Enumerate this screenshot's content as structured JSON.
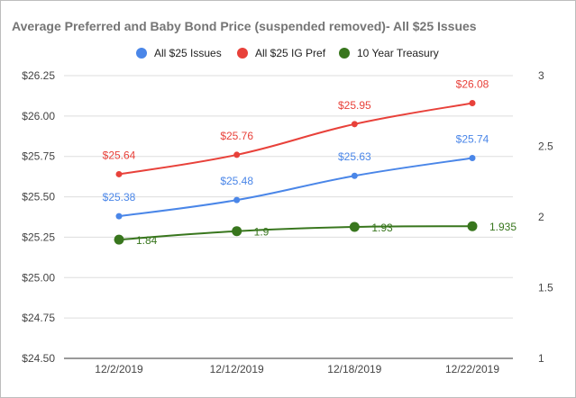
{
  "chart_data": {
    "type": "line",
    "title": "Average Preferred and Baby Bond Price (suspended removed)- All $25 Issues",
    "categories": [
      "12/2/2019",
      "12/12/2019",
      "12/18/2019",
      "12/22/2019"
    ],
    "series": [
      {
        "name": "All $25 Issues",
        "axis": "left",
        "color": "#4a86e8",
        "values": [
          25.38,
          25.48,
          25.63,
          25.74
        ],
        "labels": [
          "$25.38",
          "$25.48",
          "$25.63",
          "$25.74"
        ]
      },
      {
        "name": "All $25 IG Pref",
        "axis": "left",
        "color": "#e8413a",
        "values": [
          25.64,
          25.76,
          25.95,
          26.08
        ],
        "labels": [
          "$25.64",
          "$25.76",
          "$25.95",
          "$26.08"
        ]
      },
      {
        "name": "10 Year Treasury",
        "axis": "right",
        "color": "#38761d",
        "values": [
          1.84,
          1.9,
          1.93,
          1.935
        ],
        "labels": [
          "1.84",
          "1.9",
          "1.93",
          "1.935"
        ]
      }
    ],
    "left_axis": {
      "ylim": [
        24.5,
        26.25
      ],
      "ticks": [
        24.5,
        24.75,
        25.0,
        25.25,
        25.5,
        25.75,
        26.0,
        26.25
      ],
      "tick_labels": [
        "$24.50",
        "$24.75",
        "$25.00",
        "$25.25",
        "$25.50",
        "$25.75",
        "$26.00",
        "$26.25"
      ]
    },
    "right_axis": {
      "ylim": [
        1,
        3
      ],
      "ticks": [
        1,
        1.5,
        2,
        2.5,
        3
      ],
      "tick_labels": [
        "1",
        "1.5",
        "2",
        "2.5",
        "3"
      ]
    },
    "xlabel": "",
    "ylabel": "",
    "grid": true,
    "legend_position": "top"
  }
}
